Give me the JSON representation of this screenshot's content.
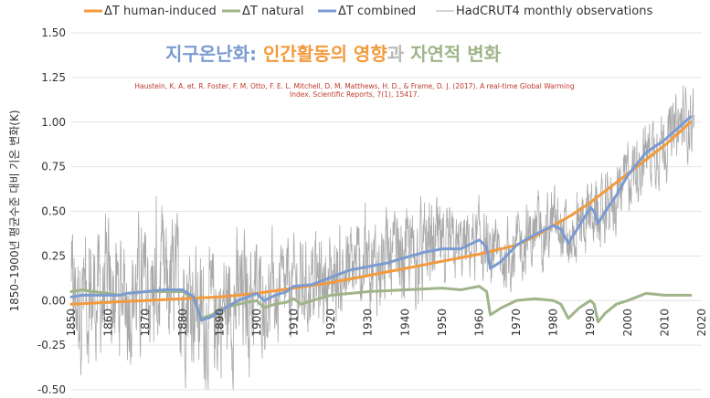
{
  "chart_data": {
    "type": "line",
    "title_parts": [
      {
        "text": "지구온난화: ",
        "color": "#7b9bd1"
      },
      {
        "text": "인간활동의 영향",
        "color": "#f29a3c"
      },
      {
        "text": "과 ",
        "color": "#b8b8b8"
      },
      {
        "text": "자연적 변화",
        "color": "#9fb589"
      }
    ],
    "citation_lines": [
      "Haustein, K. A. et. R. Foster, F. M. Otto, F. E. L. Mitchell, D. M. Matthews, H. D., & Frame, D. J. (2017). A real-time Global Warming",
      "Index. Scientific Reports, 7(1), 15417."
    ],
    "ylabel": "1850–1900년 평균수준 대비 기온 변화(K)",
    "xlim": [
      1850,
      2020
    ],
    "ylim": [
      -0.5,
      1.5
    ],
    "xticks": [
      1850,
      1860,
      1870,
      1880,
      1890,
      1900,
      1910,
      1920,
      1930,
      1940,
      1950,
      1960,
      1970,
      1980,
      1990,
      2000,
      2010,
      2020
    ],
    "yticks": [
      "-0.50",
      "-0.25",
      "0.00",
      "0.25",
      "0.50",
      "0.75",
      "1.00",
      "1.25",
      "1.50"
    ],
    "legend": [
      {
        "label": "ΔT human-induced",
        "color": "#f29a3c"
      },
      {
        "label": "ΔT natural",
        "color": "#9fb589"
      },
      {
        "label": "ΔT combined",
        "color": "#7b9bd1"
      },
      {
        "label": "HadCRUT4 monthly observations",
        "color": "#aaaaaa"
      }
    ],
    "series": [
      {
        "name": "ΔT human-induced",
        "color": "#f29a3c",
        "x": [
          1850,
          1860,
          1870,
          1880,
          1890,
          1900,
          1910,
          1920,
          1930,
          1940,
          1950,
          1960,
          1970,
          1975,
          1980,
          1985,
          1990,
          1995,
          2000,
          2005,
          2010,
          2017
        ],
        "values": [
          -0.02,
          -0.01,
          0.0,
          0.01,
          0.02,
          0.04,
          0.07,
          0.1,
          0.14,
          0.18,
          0.22,
          0.26,
          0.31,
          0.36,
          0.42,
          0.48,
          0.55,
          0.63,
          0.71,
          0.79,
          0.87,
          1.0
        ]
      },
      {
        "name": "ΔT natural",
        "color": "#9fb589",
        "x": [
          1850,
          1853,
          1856,
          1860,
          1863,
          1865,
          1870,
          1875,
          1880,
          1883,
          1885,
          1888,
          1890,
          1895,
          1900,
          1902,
          1905,
          1908,
          1910,
          1912,
          1915,
          1920,
          1930,
          1940,
          1950,
          1955,
          1960,
          1962,
          1963,
          1966,
          1970,
          1975,
          1980,
          1982,
          1984,
          1987,
          1990,
          1991,
          1992,
          1994,
          1997,
          2000,
          2005,
          2010,
          2017
        ],
        "values": [
          0.05,
          0.06,
          0.05,
          0.04,
          0.03,
          0.04,
          0.05,
          0.05,
          0.05,
          0.01,
          -0.1,
          -0.08,
          -0.05,
          -0.02,
          0.0,
          -0.04,
          -0.02,
          -0.01,
          0.01,
          -0.02,
          0.0,
          0.03,
          0.05,
          0.06,
          0.07,
          0.06,
          0.08,
          0.05,
          -0.08,
          -0.04,
          0.0,
          0.01,
          0.0,
          -0.02,
          -0.1,
          -0.04,
          0.0,
          -0.02,
          -0.12,
          -0.07,
          -0.02,
          0.0,
          0.04,
          0.03,
          0.03
        ]
      },
      {
        "name": "ΔT combined",
        "color": "#7b9bd1",
        "x": [
          1850,
          1853,
          1856,
          1860,
          1863,
          1865,
          1870,
          1875,
          1880,
          1883,
          1885,
          1888,
          1890,
          1895,
          1900,
          1902,
          1905,
          1908,
          1910,
          1915,
          1920,
          1925,
          1930,
          1935,
          1940,
          1945,
          1950,
          1955,
          1960,
          1962,
          1963,
          1966,
          1970,
          1975,
          1980,
          1982,
          1984,
          1987,
          1990,
          1991,
          1992,
          1994,
          1997,
          2000,
          2005,
          2010,
          2017
        ],
        "values": [
          0.02,
          0.03,
          0.03,
          0.03,
          0.03,
          0.04,
          0.05,
          0.06,
          0.06,
          0.02,
          -0.11,
          -0.09,
          -0.06,
          0.0,
          0.04,
          0.0,
          0.03,
          0.05,
          0.08,
          0.09,
          0.13,
          0.17,
          0.19,
          0.21,
          0.24,
          0.27,
          0.29,
          0.29,
          0.34,
          0.3,
          0.18,
          0.22,
          0.31,
          0.37,
          0.42,
          0.4,
          0.32,
          0.42,
          0.52,
          0.5,
          0.43,
          0.5,
          0.59,
          0.7,
          0.83,
          0.9,
          1.03
        ]
      }
    ]
  }
}
